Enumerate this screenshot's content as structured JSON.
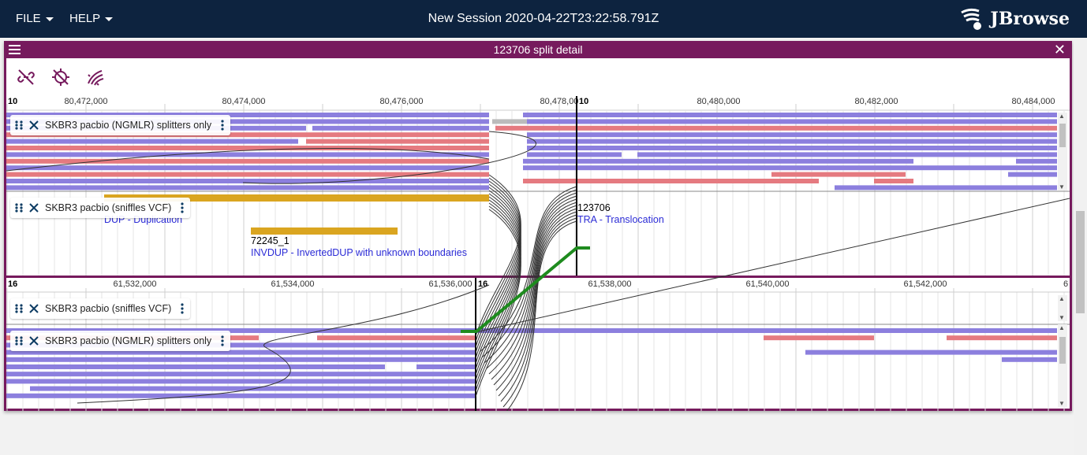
{
  "menu": {
    "file": "FILE",
    "help": "HELP"
  },
  "session_title": "New Session 2020-04-22T23:22:58.791Z",
  "logo_text": "JBrowse",
  "view": {
    "title": "123706 split detail",
    "toolbar_icons": [
      "link-off-icon",
      "location-searching-off-icon",
      "linked-reads-icon"
    ]
  },
  "top": {
    "ref_left": "10",
    "ref_right": "10",
    "ticks_left": [
      "80,472,000",
      "80,474,000",
      "80,476,000",
      "80,478,00"
    ],
    "ticks_right": [
      "80,480,000",
      "80,482,000",
      "80,484,000"
    ],
    "tracks": [
      {
        "label": "SKBR3 pacbio (NGMLR) splitters only"
      },
      {
        "label": "SKBR3 pacbio (sniffles VCF)"
      }
    ],
    "features": [
      {
        "name": "",
        "desc": "DUP - Duplication"
      },
      {
        "name": "72245_1",
        "desc": "INVDUP - InvertedDUP with unknown boundaries"
      },
      {
        "name": "123706",
        "desc": "TRA - Translocation"
      }
    ]
  },
  "bottom": {
    "ref_left": "16",
    "ref_right": "16",
    "ticks_left": [
      "61,532,000",
      "61,534,000",
      "61,536,000"
    ],
    "ticks_right": [
      "61,538,000",
      "61,540,000",
      "61,542,000",
      "6"
    ],
    "tracks": [
      {
        "label": "SKBR3 pacbio (sniffles VCF)"
      },
      {
        "label": "SKBR3 pacbio (NGMLR) splitters only"
      }
    ]
  },
  "colors": {
    "appbar": "#0d233f",
    "view_border": "#761a5d",
    "forward_read": "#8c7fde",
    "reverse_read": "#e57a80",
    "sv_feature": "#daa520",
    "breakend_link": "#1e8b1e",
    "feature_desc": "#2b2bd6"
  }
}
